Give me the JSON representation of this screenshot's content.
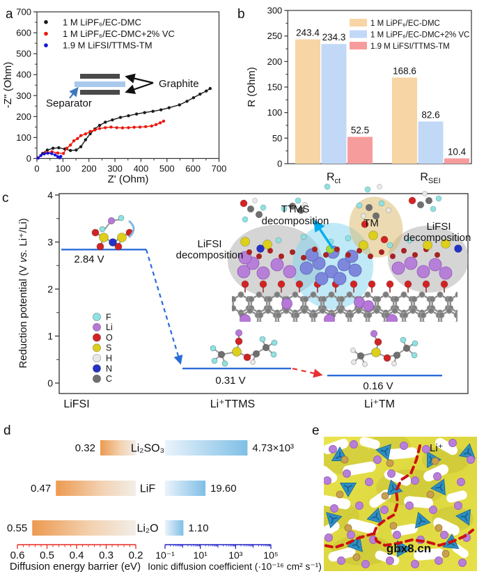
{
  "panels": {
    "a": "a",
    "b": "b",
    "c": "c",
    "d": "d",
    "e": "e"
  },
  "chart_data": [
    {
      "id": "a",
      "type": "scatter",
      "xlabel": "Z' (Ohm)",
      "ylabel": "-Z'' (Ohm)",
      "xlim": [
        0,
        700
      ],
      "ylim": [
        0,
        700
      ],
      "xticks": [
        0,
        100,
        200,
        300,
        400,
        500,
        600,
        700
      ],
      "yticks": [
        0,
        100,
        200,
        300,
        400,
        500,
        600,
        700
      ],
      "series": [
        {
          "name": "1 M LiPF₆/EC-DMC",
          "color": "#1a1a1a",
          "points": [
            [
              4,
              3
            ],
            [
              22,
              24
            ],
            [
              40,
              40
            ],
            [
              62,
              49
            ],
            [
              84,
              51
            ],
            [
              107,
              45
            ],
            [
              129,
              38
            ],
            [
              151,
              40
            ],
            [
              169,
              56
            ],
            [
              187,
              89
            ],
            [
              205,
              118
            ],
            [
              223,
              141
            ],
            [
              241,
              158
            ],
            [
              263,
              173
            ],
            [
              290,
              184
            ],
            [
              321,
              196
            ],
            [
              352,
              204
            ],
            [
              383,
              212
            ],
            [
              414,
              219
            ],
            [
              446,
              225
            ],
            [
              477,
              232
            ],
            [
              508,
              242
            ],
            [
              548,
              256
            ],
            [
              577,
              273
            ],
            [
              602,
              290
            ],
            [
              627,
              307
            ],
            [
              651,
              322
            ],
            [
              666,
              334
            ]
          ]
        },
        {
          "name": "1 M LiPF₆/EC-DMC+2% VC",
          "color": "#e8190f",
          "points": [
            [
              4,
              3
            ],
            [
              31,
              28
            ],
            [
              58,
              32
            ],
            [
              80,
              26
            ],
            [
              102,
              24
            ],
            [
              115,
              49
            ],
            [
              129,
              64
            ],
            [
              142,
              84
            ],
            [
              156,
              95
            ],
            [
              169,
              109
            ],
            [
              187,
              117
            ],
            [
              205,
              129
            ],
            [
              223,
              136
            ],
            [
              241,
              143
            ],
            [
              263,
              147
            ],
            [
              285,
              150
            ],
            [
              307,
              147
            ],
            [
              329,
              146
            ],
            [
              352,
              147
            ],
            [
              374,
              149
            ],
            [
              396,
              150
            ],
            [
              418,
              152
            ],
            [
              441,
              155
            ],
            [
              458,
              162
            ],
            [
              474,
              170
            ],
            [
              487,
              178
            ]
          ]
        },
        {
          "name": "1.9 M LiFSI/TTMS-TM",
          "color": "#1515dd",
          "points": [
            [
              5,
              2
            ],
            [
              15,
              14
            ],
            [
              28,
              22
            ],
            [
              42,
              25
            ],
            [
              57,
              23
            ],
            [
              70,
              17
            ],
            [
              80,
              9
            ],
            [
              88,
              3
            ],
            [
              92,
              10
            ]
          ]
        }
      ],
      "inset": {
        "graphite_label": "Graphite",
        "separator_label": "Separator",
        "separator_color": "#a9c9ec",
        "electrode_color": "#4a4a4a",
        "separator_label_color": "#3c78c0"
      }
    },
    {
      "id": "b",
      "type": "bar",
      "ylabel": "R (Ohm)",
      "ylim": [
        0,
        300
      ],
      "yticks": [
        0,
        50,
        100,
        150,
        200,
        250,
        300
      ],
      "categories": [
        {
          "base": "R",
          "sub": "ct"
        },
        {
          "base": "R",
          "sub": "SEI"
        }
      ],
      "series": [
        {
          "name": "1 M LiPF₆/EC-DMC",
          "fill": "#f7d5a4",
          "label_color": "#ec9551",
          "values": [
            243.4,
            168.6
          ]
        },
        {
          "name": "1 M LiPF₆/EC-DMC+2% VC",
          "fill": "#c2d8f7",
          "label_color": "#4a7cc4",
          "values": [
            234.3,
            82.6
          ]
        },
        {
          "name": "1.9 M LiFSI/TTMS-TM",
          "fill": "#f79c9c",
          "label_color": "#ee5252",
          "values": [
            52.5,
            10.4
          ]
        }
      ]
    },
    {
      "id": "c",
      "type": "step-diagram",
      "ylabel_parts": [
        "Reduction potential (V ",
        "vs.",
        " Li⁺/Li)"
      ],
      "ylim": [
        0,
        4
      ],
      "yticks": [
        0,
        1,
        2,
        3,
        4
      ],
      "steps": [
        {
          "x_label": "LiFSI",
          "value": 2.84,
          "value_label": "2.84 V"
        },
        {
          "x_label": "Li⁺TTMS",
          "value": 0.31,
          "value_label": "0.31 V"
        },
        {
          "x_label": "Li⁺TM",
          "value": 0.16,
          "value_label": "0.16 V"
        }
      ],
      "annotations": {
        "ttms_line1": "TTMS",
        "ttms_line2": "decomposition",
        "ttms_color": "#00aeef",
        "tm": "TM",
        "tm_color": "#c8960c",
        "lifsi_line1": "LiFSI",
        "lifsi_line2": "decomposition",
        "lifsi_color": "#8c8c8c"
      },
      "atom_legend": [
        {
          "symbol": "F",
          "color": "#8fe2e2"
        },
        {
          "symbol": "Li",
          "color": "#b678d8"
        },
        {
          "symbol": "O",
          "color": "#d42222"
        },
        {
          "symbol": "S",
          "color": "#ddcf1a"
        },
        {
          "symbol": "H",
          "color": "#e9e9e9"
        },
        {
          "symbol": "N",
          "color": "#2433c6"
        },
        {
          "symbol": "C",
          "color": "#6f6f6f"
        }
      ]
    },
    {
      "id": "d",
      "type": "tornado",
      "rows": [
        {
          "label": "Li₂SO₃",
          "barrier": 0.32,
          "barrier_label": "0.32",
          "coeff": 4730,
          "coeff_label": "4.73×10³"
        },
        {
          "label": "LiF",
          "barrier": 0.47,
          "barrier_label": "0.47",
          "coeff": 19.6,
          "coeff_label": "19.60"
        },
        {
          "label": "Li₂O",
          "barrier": 0.55,
          "barrier_label": "0.55",
          "coeff": 1.1,
          "coeff_label": "1.10"
        }
      ],
      "left_axis": {
        "title": "Diffusion energy barrier (eV)",
        "color": "#e8281e",
        "tick_labels": [
          "0.6",
          "0.5",
          "0.4",
          "0.3",
          "0.2"
        ],
        "tick_values": [
          0.6,
          0.5,
          0.4,
          0.3,
          0.2
        ],
        "range": [
          0.6,
          0.2
        ]
      },
      "right_axis": {
        "title": "Ionic diffusion coefficient (·10⁻¹⁶ cm² s⁻¹)",
        "color": "#2222cc",
        "tick_labels": [
          "10⁻¹",
          "10¹",
          "10³",
          "10⁵"
        ],
        "tick_exponents": [
          -1,
          1,
          3,
          5
        ],
        "log_range": [
          -1,
          5
        ]
      }
    }
  ],
  "panel_e": {
    "li_label": "Li⁺",
    "watermark": "gbx8.cn"
  }
}
